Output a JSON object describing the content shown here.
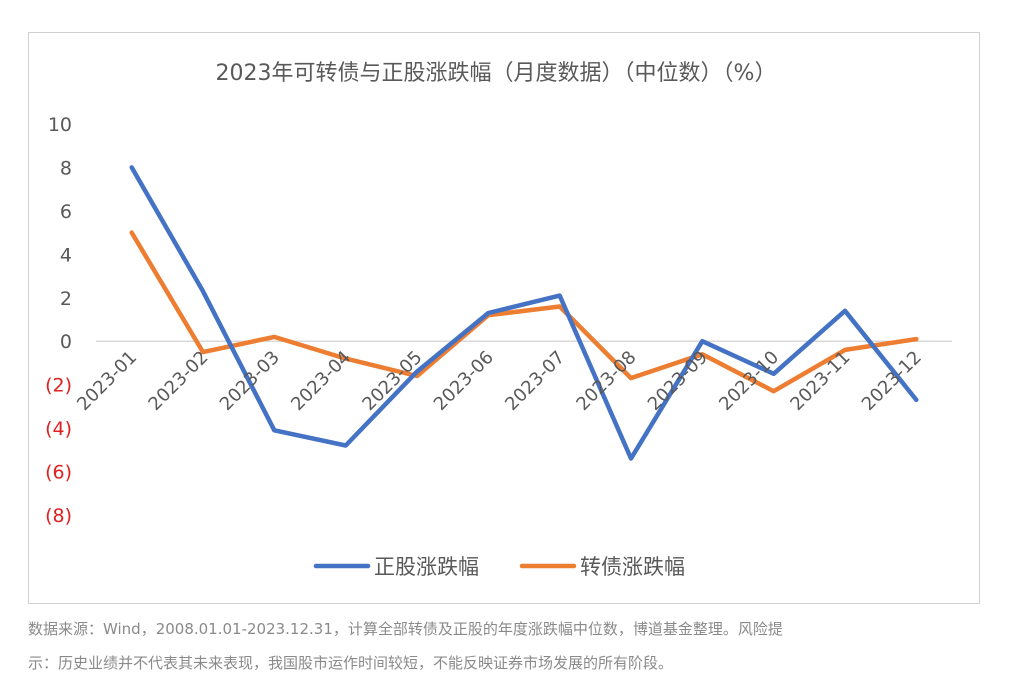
{
  "chart_data": {
    "type": "line",
    "title": "2023年可转债与正股涨跌幅（月度数据）（中位数）（%）",
    "xlabel": "",
    "ylabel": "",
    "categories": [
      "2023-01",
      "2023-02",
      "2023-03",
      "2023-04",
      "2023-05",
      "2023-06",
      "2023-07",
      "2023-08",
      "2023-09",
      "2023-10",
      "2023-11",
      "2023-12"
    ],
    "ylim": [
      -8,
      10
    ],
    "yticks": [
      10,
      8,
      6,
      4,
      2,
      0,
      -2,
      -4,
      -6,
      -8
    ],
    "ytick_labels": [
      "10",
      "8",
      "6",
      "4",
      "2",
      "0",
      "(2)",
      "(4)",
      "(6)",
      "(8)"
    ],
    "negative_tick_color": "#e02020",
    "grid": false,
    "legend_position": "bottom",
    "series": [
      {
        "name": "正股涨跌幅",
        "color": "#4472c4",
        "values": [
          8.0,
          2.3,
          -4.1,
          -4.8,
          -1.4,
          1.3,
          2.1,
          -5.4,
          0.0,
          -1.5,
          1.4,
          -2.7
        ]
      },
      {
        "name": "转债涨跌幅",
        "color": "#ed7d31",
        "values": [
          5.0,
          -0.5,
          0.2,
          -0.8,
          -1.6,
          1.2,
          1.6,
          -1.7,
          -0.6,
          -2.3,
          -0.4,
          0.1
        ]
      }
    ]
  },
  "footnote": {
    "line1": "数据来源：Wind，2008.01.01-2023.12.31，计算全部转债及正股的年度涨跌幅中位数，博道基金整理。风险提",
    "line2": "示：历史业绩并不代表其未来表现，我国股市运作时间较短，不能反映证券市场发展的所有阶段。"
  }
}
